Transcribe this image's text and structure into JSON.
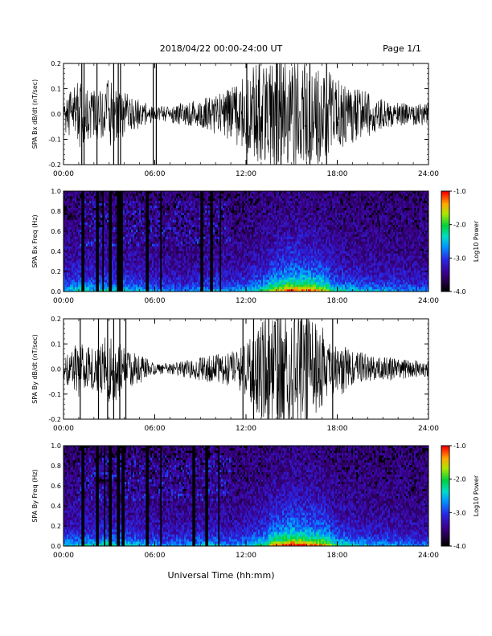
{
  "header": {
    "title": "2018/04/22  00:00-24:00 UT",
    "page": "Page 1/1"
  },
  "x_axis": {
    "label": "Universal Time (hh:mm)",
    "ticks": [
      "00:00",
      "06:00",
      "12:00",
      "18:00",
      "24:00"
    ]
  },
  "chart_data": [
    {
      "type": "line",
      "ylabel": "SPA Bx dB/dt (nT/sec)",
      "xlim": [
        0,
        24
      ],
      "ylim": [
        -0.2,
        0.2
      ],
      "yticks": [
        "-0.2",
        "-0.1",
        "0.0",
        "0.1",
        "0.2"
      ],
      "envelope": {
        "hours": [
          0,
          0.5,
          1,
          1.5,
          2,
          2.5,
          3,
          3.5,
          4,
          4.5,
          5,
          6,
          7,
          8,
          9,
          10,
          11,
          12,
          13,
          14,
          15,
          16,
          17,
          18,
          19,
          20,
          21,
          22,
          23,
          24
        ],
        "amplitude": [
          0.06,
          0.08,
          0.12,
          0.09,
          0.08,
          0.1,
          0.12,
          0.1,
          0.08,
          0.06,
          0.05,
          0.03,
          0.03,
          0.04,
          0.05,
          0.07,
          0.09,
          0.14,
          0.19,
          0.2,
          0.2,
          0.19,
          0.17,
          0.12,
          0.1,
          0.08,
          0.05,
          0.04,
          0.04,
          0.04
        ]
      },
      "spike_hours": [
        1.2,
        1.35,
        2.2,
        3.3,
        3.6,
        3.75,
        5.9,
        6.1,
        12.05,
        14.0,
        14.3,
        16.2,
        17.3
      ]
    },
    {
      "type": "heatmap",
      "ylabel": "SPA Bx Freq (Hz)",
      "xlim": [
        0,
        24
      ],
      "ylim": [
        0.0,
        1.0
      ],
      "yticks": [
        "0.0",
        "0.2",
        "0.4",
        "0.6",
        "0.8",
        "1.0"
      ],
      "colorbar": {
        "label": "Log10 Power",
        "range": [
          -4.0,
          -1.0
        ],
        "ticks": [
          "-1.0",
          "-2.0",
          "-3.0",
          "-4.0"
        ]
      },
      "activity": {
        "hours": [
          0,
          1,
          2,
          3,
          4,
          5,
          6,
          7,
          8,
          9,
          10,
          11,
          12,
          13,
          14,
          15,
          16,
          17,
          18,
          19,
          20,
          21,
          22,
          23,
          24
        ],
        "level": [
          0.45,
          0.55,
          0.5,
          0.55,
          0.5,
          0.45,
          0.4,
          0.35,
          0.35,
          0.4,
          0.45,
          0.4,
          0.45,
          0.6,
          0.75,
          0.9,
          0.85,
          0.75,
          0.55,
          0.5,
          0.45,
          0.4,
          0.4,
          0.35,
          0.35
        ]
      },
      "streak_hours": [
        1.3,
        2.2,
        2.6,
        3.1,
        3.6,
        3.8,
        5.5,
        6.4,
        9.1,
        9.7,
        10.3
      ]
    },
    {
      "type": "line",
      "ylabel": "SPA By dB/dt (nT/sec)",
      "xlim": [
        0,
        24
      ],
      "ylim": [
        -0.2,
        0.2
      ],
      "yticks": [
        "-0.2",
        "-0.1",
        "0.0",
        "0.1",
        "0.2"
      ],
      "envelope": {
        "hours": [
          0,
          0.5,
          1,
          1.5,
          2,
          2.5,
          3,
          3.5,
          4,
          4.5,
          5,
          6,
          7,
          8,
          9,
          10,
          11,
          12,
          13,
          14,
          15,
          16,
          17,
          18,
          19,
          20,
          21,
          22,
          23,
          24
        ],
        "amplitude": [
          0.04,
          0.07,
          0.1,
          0.08,
          0.07,
          0.1,
          0.12,
          0.11,
          0.08,
          0.06,
          0.05,
          0.02,
          0.02,
          0.03,
          0.04,
          0.05,
          0.06,
          0.1,
          0.17,
          0.2,
          0.2,
          0.2,
          0.15,
          0.1,
          0.07,
          0.05,
          0.04,
          0.04,
          0.03,
          0.03
        ]
      },
      "spike_hours": [
        1.1,
        2.3,
        2.9,
        3.3,
        3.7,
        4.1,
        11.8,
        12.5,
        13.5,
        14.1,
        16.0,
        17.7
      ]
    },
    {
      "type": "heatmap",
      "ylabel": "SPA By Freq (Hz)",
      "xlim": [
        0,
        24
      ],
      "ylim": [
        0.0,
        1.0
      ],
      "yticks": [
        "0.0",
        "0.2",
        "0.4",
        "0.6",
        "0.8",
        "1.0"
      ],
      "colorbar": {
        "label": "Log10 Power",
        "range": [
          -4.0,
          -1.0
        ],
        "ticks": [
          "-1.0",
          "-2.0",
          "-3.0",
          "-4.0"
        ]
      },
      "activity": {
        "hours": [
          0,
          1,
          2,
          3,
          4,
          5,
          6,
          7,
          8,
          9,
          10,
          11,
          12,
          13,
          14,
          15,
          16,
          17,
          18,
          19,
          20,
          21,
          22,
          23,
          24
        ],
        "level": [
          0.45,
          0.5,
          0.5,
          0.55,
          0.5,
          0.45,
          0.4,
          0.35,
          0.4,
          0.45,
          0.45,
          0.4,
          0.45,
          0.6,
          0.8,
          0.95,
          0.85,
          0.8,
          0.6,
          0.5,
          0.45,
          0.4,
          0.4,
          0.35,
          0.35
        ]
      },
      "streak_hours": [
        1.3,
        2.2,
        2.7,
        3.1,
        3.6,
        3.9,
        5.5,
        6.4,
        8.6,
        9.4,
        10.2
      ]
    }
  ]
}
